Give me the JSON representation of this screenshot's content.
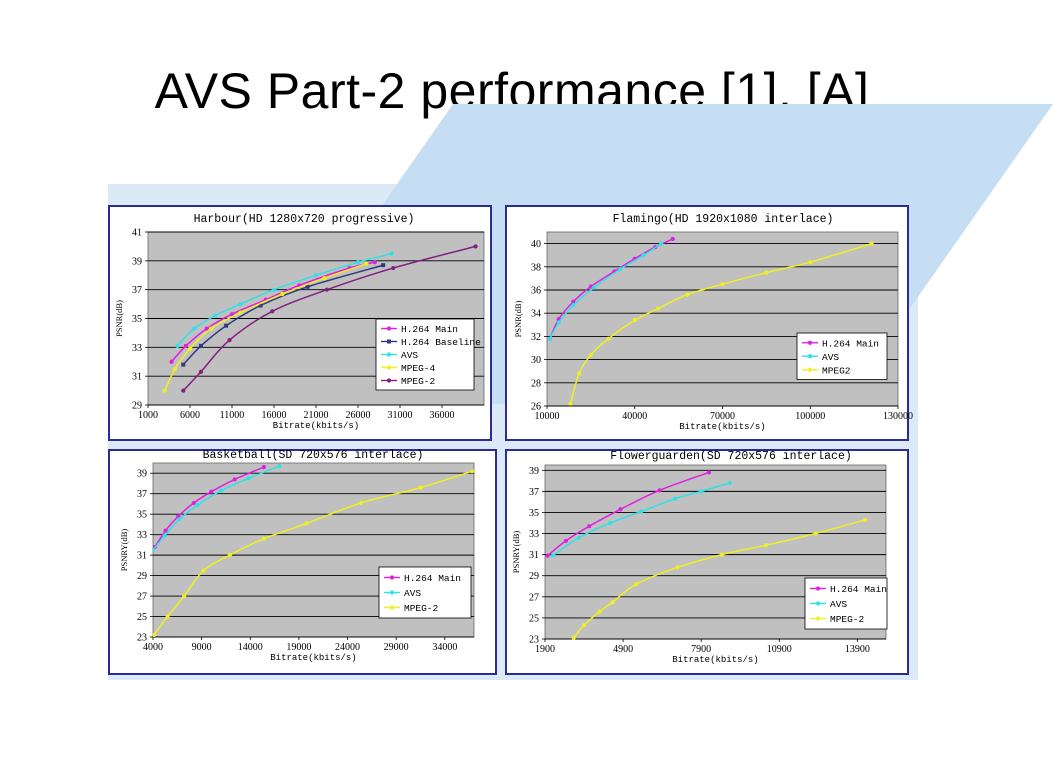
{
  "slide": {
    "title": "AVS Part-2 performance [1], [A]"
  },
  "chart_data": [
    {
      "type": "line",
      "title": "Harbour(HD 1280x720 progressive)",
      "xlabel": "Bitrate(kbits/s)",
      "ylabel": "PSNR(dB)",
      "xlim": [
        1000,
        41000
      ],
      "ylim": [
        29,
        41
      ],
      "xticks": [
        1000,
        6000,
        11000,
        16000,
        21000,
        26000,
        31000,
        36000
      ],
      "xticklabels": [
        "1000",
        "6000",
        "11000",
        "16000",
        "21000",
        "26000",
        "31000",
        "36000"
      ],
      "yticks": [
        29,
        31,
        33,
        35,
        37,
        39,
        41
      ],
      "yticklabels": [
        "29",
        "31",
        "33",
        "35",
        "37",
        "39",
        "41"
      ],
      "grid": "horizontal",
      "legend_position": "bottom-right",
      "series": [
        {
          "name": "H.264 Main",
          "color": "#e020e0",
          "marker": "dot",
          "points": [
            [
              3800,
              32.0
            ],
            [
              5500,
              33.1
            ],
            [
              8000,
              34.3
            ],
            [
              11000,
              35.3
            ],
            [
              15000,
              36.3
            ],
            [
              19000,
              37.3
            ],
            [
              25000,
              38.5
            ],
            [
              28000,
              38.9
            ]
          ]
        },
        {
          "name": "H.264 Baseline",
          "color": "#303880",
          "marker": "square",
          "points": [
            [
              5200,
              31.8
            ],
            [
              7300,
              33.1
            ],
            [
              10300,
              34.5
            ],
            [
              14400,
              35.9
            ],
            [
              20000,
              37.2
            ],
            [
              29000,
              38.7
            ]
          ]
        },
        {
          "name": "AVS",
          "color": "#30e0e8",
          "marker": "dot",
          "points": [
            [
              4500,
              33.1
            ],
            [
              6500,
              34.3
            ],
            [
              9000,
              35.2
            ],
            [
              12000,
              36.0
            ],
            [
              16000,
              37.0
            ],
            [
              21000,
              38.0
            ],
            [
              26000,
              38.9
            ],
            [
              30000,
              39.5
            ]
          ]
        },
        {
          "name": "MPEG-4",
          "color": "#f0f020",
          "marker": "dot",
          "points": [
            [
              3000,
              30.0
            ],
            [
              4200,
              31.5
            ],
            [
              6000,
              32.9
            ],
            [
              8500,
              34.3
            ],
            [
              12000,
              35.4
            ],
            [
              17000,
              36.7
            ],
            [
              22000,
              37.8
            ],
            [
              27000,
              38.8
            ]
          ]
        },
        {
          "name": "MPEG-2",
          "color": "#802080",
          "marker": "dot",
          "points": [
            [
              5200,
              30.0
            ],
            [
              7300,
              31.3
            ],
            [
              10700,
              33.5
            ],
            [
              15800,
              35.5
            ],
            [
              22300,
              37.0
            ],
            [
              30200,
              38.5
            ],
            [
              40000,
              40.0
            ]
          ]
        }
      ]
    },
    {
      "type": "line",
      "title": "Flamingo(HD 1920x1080 interlace)",
      "xlabel": "Bitrate(kbits/s)",
      "ylabel": "PSNR(dB)",
      "xlim": [
        10000,
        130000
      ],
      "ylim": [
        26,
        41
      ],
      "xticks": [
        10000,
        40000,
        70000,
        100000,
        130000
      ],
      "xticklabels": [
        "10000",
        "40000",
        "70000",
        "100000",
        "130000"
      ],
      "yticks": [
        26,
        28,
        30,
        32,
        34,
        36,
        38,
        40
      ],
      "yticklabels": [
        "26",
        "28",
        "30",
        "32",
        "34",
        "36",
        "38",
        "40"
      ],
      "grid": "horizontal",
      "legend_position": "bottom-right",
      "series": [
        {
          "name": "H.264 Main",
          "color": "#e020e0",
          "marker": "dot",
          "points": [
            [
              11000,
              31.8
            ],
            [
              14000,
              33.5
            ],
            [
              19000,
              35.0
            ],
            [
              25000,
              36.3
            ],
            [
              33000,
              37.6
            ],
            [
              40000,
              38.7
            ],
            [
              47000,
              39.7
            ],
            [
              53000,
              40.4
            ]
          ]
        },
        {
          "name": "AVS",
          "color": "#30e0e8",
          "marker": "dot",
          "points": [
            [
              11000,
              31.8
            ],
            [
              14000,
              33.2
            ],
            [
              19000,
              34.7
            ],
            [
              26000,
              36.2
            ],
            [
              35000,
              37.8
            ],
            [
              43000,
              39.0
            ],
            [
              49000,
              40.0
            ]
          ]
        },
        {
          "name": "MPEG2",
          "color": "#f0f020",
          "marker": "dot",
          "points": [
            [
              18000,
              26.2
            ],
            [
              21000,
              28.8
            ],
            [
              25000,
              30.4
            ],
            [
              31000,
              31.8
            ],
            [
              40000,
              33.4
            ],
            [
              48000,
              34.4
            ],
            [
              58000,
              35.6
            ],
            [
              70000,
              36.5
            ],
            [
              85000,
              37.5
            ],
            [
              100000,
              38.4
            ],
            [
              121000,
              40.0
            ]
          ]
        }
      ]
    },
    {
      "type": "line",
      "title": "Basketball(SD 720x576 interlace)",
      "xlabel": "Bitrate(kbits/s)",
      "ylabel": "PSNRY(dB)",
      "xlim": [
        4000,
        37000
      ],
      "ylim": [
        23,
        40
      ],
      "xticks": [
        4000,
        9000,
        14000,
        19000,
        24000,
        29000,
        34000
      ],
      "xticklabels": [
        "4000",
        "9000",
        "14000",
        "19000",
        "24000",
        "29000",
        "34000"
      ],
      "yticks": [
        23,
        25,
        27,
        29,
        31,
        33,
        35,
        37,
        39
      ],
      "yticklabels": [
        "23",
        "25",
        "27",
        "29",
        "31",
        "33",
        "35",
        "37",
        "39"
      ],
      "grid": "horizontal",
      "legend_position": "bottom-right",
      "series": [
        {
          "name": "H.264 Main",
          "color": "#e020e0",
          "marker": "dot",
          "points": [
            [
              4200,
              31.8
            ],
            [
              5300,
              33.4
            ],
            [
              6600,
              34.8
            ],
            [
              8200,
              36.1
            ],
            [
              10000,
              37.2
            ],
            [
              12400,
              38.4
            ],
            [
              15400,
              39.6
            ]
          ]
        },
        {
          "name": "AVS",
          "color": "#30e0e8",
          "marker": "dot",
          "points": [
            [
              4000,
              31.5
            ],
            [
              5200,
              32.9
            ],
            [
              6700,
              34.5
            ],
            [
              8600,
              35.9
            ],
            [
              11000,
              37.3
            ],
            [
              13800,
              38.5
            ],
            [
              17000,
              39.7
            ]
          ]
        },
        {
          "name": "MPEG-2",
          "color": "#f0f020",
          "marker": "dot",
          "points": [
            [
              4100,
              23.2
            ],
            [
              5500,
              25.0
            ],
            [
              7200,
              27.0
            ],
            [
              9200,
              29.5
            ],
            [
              11900,
              31.0
            ],
            [
              15400,
              32.6
            ],
            [
              19800,
              34.1
            ],
            [
              25400,
              36.1
            ],
            [
              31500,
              37.6
            ],
            [
              36800,
              39.2
            ]
          ]
        }
      ]
    },
    {
      "type": "line",
      "title": "Flowerguarden(SD 720x576 interlace)",
      "xlabel": "Bitrate(kbits/s)",
      "ylabel": "PSNRY(dB)",
      "xlim": [
        1900,
        15000
      ],
      "ylim": [
        23,
        39.5
      ],
      "xticks": [
        1900,
        4900,
        7900,
        10900,
        13900
      ],
      "xticklabels": [
        "1900",
        "4900",
        "7900",
        "10900",
        "13900"
      ],
      "yticks": [
        23,
        25,
        27,
        29,
        31,
        33,
        35,
        37,
        39
      ],
      "yticklabels": [
        "23",
        "25",
        "27",
        "29",
        "31",
        "33",
        "35",
        "37",
        "39"
      ],
      "grid": "horizontal",
      "legend_position": "bottom-right",
      "series": [
        {
          "name": "H.264 Main",
          "color": "#e020e0",
          "marker": "dot",
          "points": [
            [
              2000,
              30.9
            ],
            [
              2700,
              32.3
            ],
            [
              3600,
              33.7
            ],
            [
              4800,
              35.3
            ],
            [
              6300,
              37.1
            ],
            [
              8200,
              38.8
            ]
          ]
        },
        {
          "name": "AVS",
          "color": "#30e0e8",
          "marker": "dot",
          "points": [
            [
              2200,
              30.9
            ],
            [
              3200,
              32.6
            ],
            [
              4400,
              34.0
            ],
            [
              5600,
              35.1
            ],
            [
              6900,
              36.3
            ],
            [
              7900,
              37.0
            ],
            [
              9000,
              37.8
            ]
          ]
        },
        {
          "name": "MPEG-2",
          "color": "#f0f020",
          "marker": "dot",
          "points": [
            [
              3000,
              23.1
            ],
            [
              3400,
              24.3
            ],
            [
              4000,
              25.6
            ],
            [
              4500,
              26.5
            ],
            [
              5400,
              28.2
            ],
            [
              7000,
              29.8
            ],
            [
              8700,
              31.0
            ],
            [
              10400,
              31.9
            ],
            [
              12300,
              33.0
            ],
            [
              14200,
              34.3
            ]
          ]
        }
      ]
    }
  ]
}
